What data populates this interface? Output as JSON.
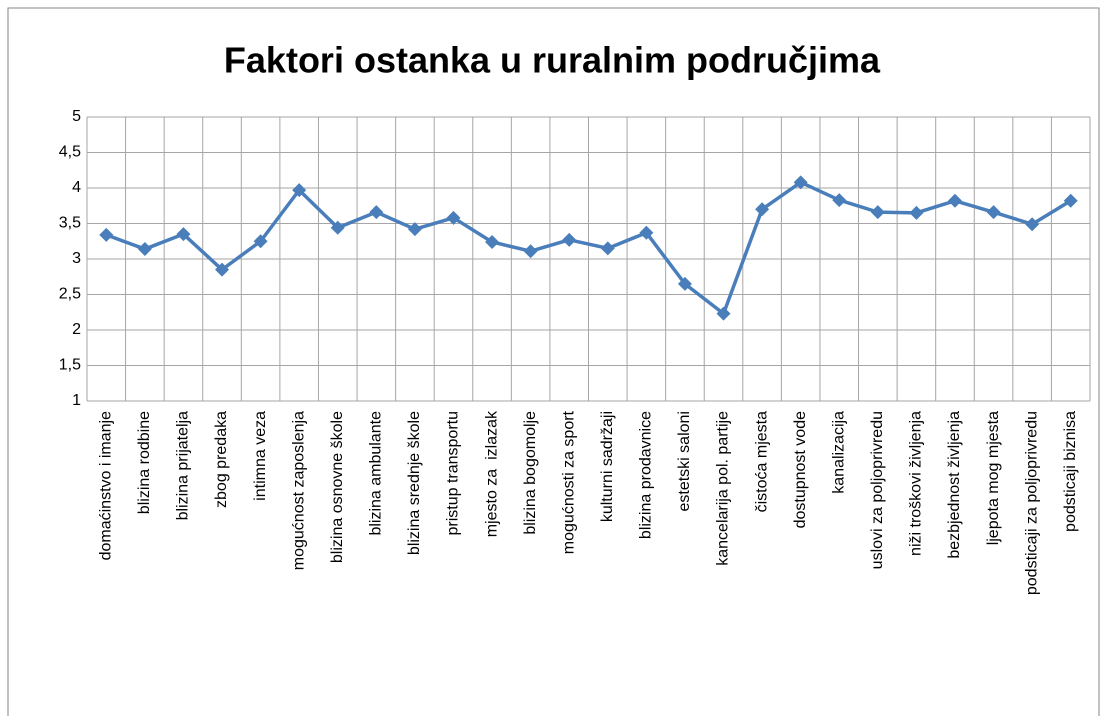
{
  "chart_data": {
    "type": "line",
    "title": "Faktori ostanka u ruralnim područjima",
    "categories": [
      "domaćinstvo i imanje",
      "blizina rodbine",
      "blizina prijatelja",
      "zbog predaka",
      "intimna veza",
      "mogućnost zaposlenja",
      "blizina osnovne škole",
      "blizina ambulante",
      "blizina srednje škole",
      "pristup transportu",
      "mjesto za  izlazak",
      "blizina bogomolje",
      "mogućnosti za sport",
      "kulturni sadržaji",
      "blizina prodavnice",
      "estetski saloni",
      "kancelarija pol. partije",
      "čistoća mjesta",
      "dostupnost vode",
      "kanalizacija",
      "uslovi za poljoprivredu",
      "niži troškovi življenja",
      "bezbjednost življenja",
      "ljepota mog mjesta",
      "podsticaji za poljoprivredu",
      "podsticaji biznisa"
    ],
    "series": [
      {
        "color": "#4a7ebb",
        "values": [
          3.34,
          3.14,
          3.35,
          2.85,
          3.25,
          3.97,
          3.44,
          3.66,
          3.42,
          3.58,
          3.24,
          3.11,
          3.27,
          3.15,
          3.37,
          2.65,
          2.23,
          3.7,
          4.08,
          3.83,
          3.66,
          3.65,
          3.82,
          3.66,
          3.49,
          3.82
        ]
      }
    ],
    "ylim": [
      1,
      5
    ],
    "yticks": [
      1,
      {
        "value": 1.5,
        "label": "1,5"
      },
      2,
      {
        "value": 2.5,
        "label": "2,5"
      },
      3,
      {
        "value": 3.5,
        "label": "3,5"
      },
      4,
      {
        "value": 4.5,
        "label": "4,5"
      },
      5
    ],
    "grid": true
  }
}
